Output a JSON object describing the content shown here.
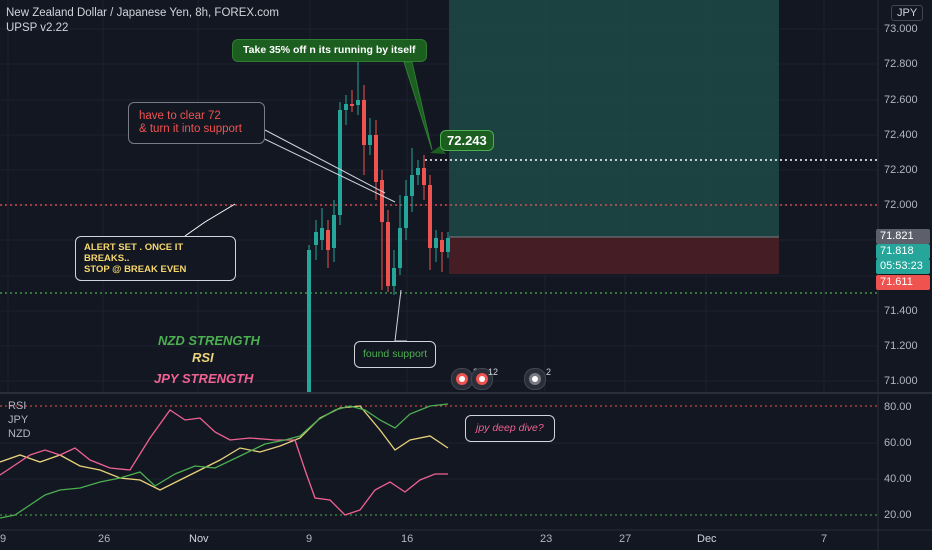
{
  "header": {
    "title": "New Zealand Dollar / Japanese Yen, 8h, FOREX.com",
    "indicator": "UPSP v2.22"
  },
  "currency_badge": "JPY",
  "price_axis": [
    "73.000",
    "72.800",
    "72.600",
    "72.400",
    "72.200",
    "72.000",
    "71.800",
    "71.600",
    "71.400",
    "71.200",
    "71.000"
  ],
  "rsi_axis": [
    "80.00",
    "60.00",
    "40.00",
    "20.00"
  ],
  "time_axis": [
    "9",
    "26",
    "Nov",
    "9",
    "16",
    "23",
    "27",
    "Dec",
    "7"
  ],
  "price_tags": {
    "t1": "71.821",
    "t2": "71.818",
    "t3": "05:53:23",
    "t4": "71.611"
  },
  "annotations": {
    "take_profit": "Take 35% off n its running by itself",
    "clear72_line1": "have to clear 72",
    "clear72_line2": "& turn it into support",
    "alert_line1": "ALERT SET . ONCE IT BREAKS..",
    "alert_line2": "STOP @ BREAK EVEN",
    "found_support": "found support",
    "target_price": "72.243",
    "jpy_dive": "jpy deep dive?"
  },
  "overlay_labels": {
    "nzd_strength": "NZD STRENGTH",
    "rsi": "RSI",
    "jpy_strength": "JPY STRENGTH"
  },
  "pane_legend": [
    "RSI",
    "JPY",
    "NZD"
  ],
  "badges": [
    "3",
    "12",
    "2"
  ],
  "colors": {
    "bg": "#131722",
    "up": "#26a69a",
    "down": "#ef5350",
    "green_text": "#4caf50",
    "rsi_yellow": "#e8d27a",
    "jpy_pink": "#f06292"
  }
}
